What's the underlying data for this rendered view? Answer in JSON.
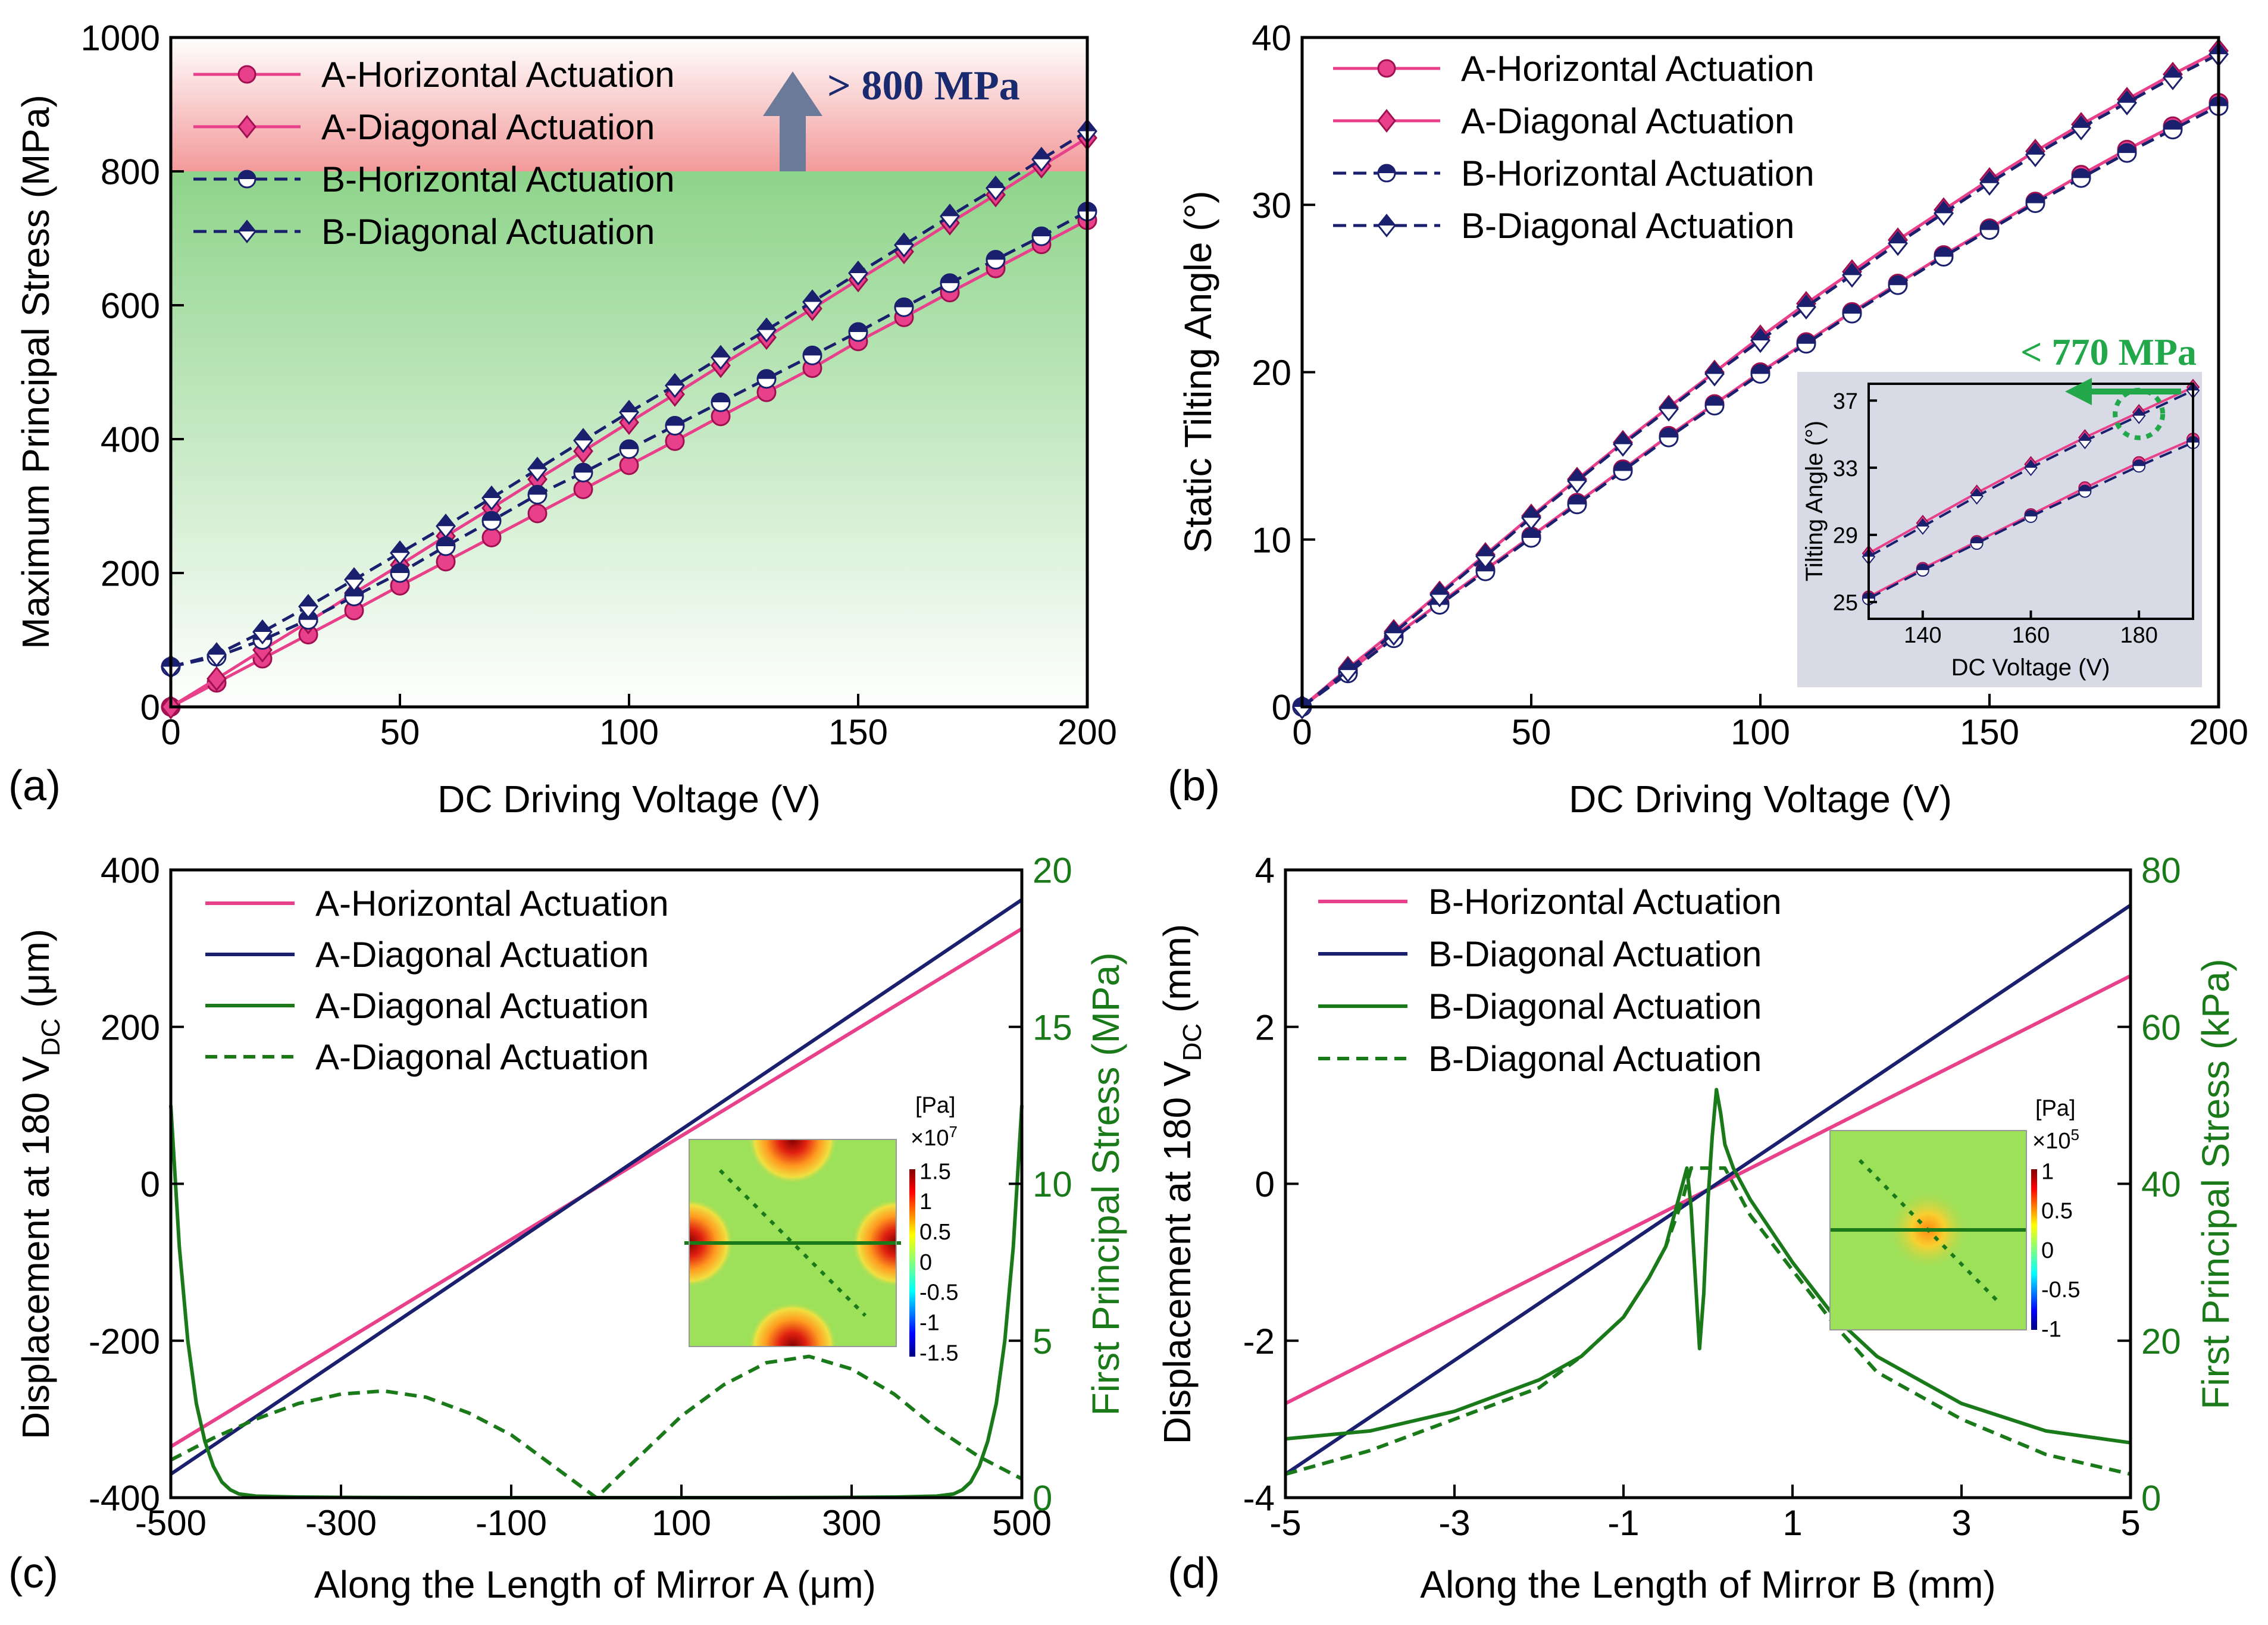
{
  "chart_data": [
    {
      "id": "a",
      "type": "line",
      "panel_label": "(a)",
      "xlabel": "DC Driving Voltage (V)",
      "ylabel": "Maximum Principal Stress (MPa)",
      "xlim": [
        0,
        200
      ],
      "ylim": [
        0,
        1000
      ],
      "xticks": [
        "0",
        "50",
        "100",
        "150",
        "200"
      ],
      "xtick_values": [
        0,
        50,
        100,
        150,
        200
      ],
      "yticks": [
        "0",
        "200",
        "400",
        "600",
        "800",
        "1000"
      ],
      "ytick_values": [
        0,
        200,
        400,
        600,
        800,
        1000
      ],
      "threshold": 800,
      "annotation": "> 800 MPa",
      "colors": {
        "pink": "#e8408a",
        "navy": "#1a1f6e",
        "red_band": "#f08080",
        "green_band": "#8fd08a",
        "arrow": "#6b7a99"
      },
      "x": [
        0,
        10,
        20,
        30,
        40,
        50,
        60,
        70,
        80,
        90,
        100,
        110,
        120,
        130,
        140,
        150,
        160,
        170,
        180,
        190,
        200
      ],
      "series": [
        {
          "name": "A-Horizontal Actuation",
          "marker": "circle",
          "values": [
            0,
            36,
            72,
            108,
            144,
            181,
            217,
            253,
            289,
            325,
            361,
            397,
            434,
            470,
            506,
            546,
            582,
            619,
            655,
            691,
            727
          ]
        },
        {
          "name": "A-Diagonal Actuation",
          "marker": "diamond",
          "values": [
            0,
            42,
            85,
            127,
            170,
            212,
            255,
            297,
            340,
            382,
            425,
            467,
            510,
            552,
            595,
            638,
            680,
            723,
            765,
            808,
            850
          ]
        },
        {
          "name": "B-Horizontal Actuation",
          "marker": "circle-half",
          "values": [
            60,
            75,
            100,
            130,
            165,
            200,
            240,
            278,
            317,
            350,
            385,
            420,
            455,
            490,
            525,
            560,
            597,
            633,
            668,
            703,
            740
          ]
        },
        {
          "name": "B-Diagonal Actuation",
          "marker": "diamond-half",
          "values": [
            60,
            78,
            112,
            150,
            190,
            230,
            270,
            312,
            355,
            398,
            440,
            480,
            522,
            563,
            605,
            648,
            690,
            733,
            775,
            818,
            860
          ]
        }
      ]
    },
    {
      "id": "b",
      "type": "line",
      "panel_label": "(b)",
      "xlabel": "DC Driving Voltage (V)",
      "ylabel": "Static Tilting Angle (°)",
      "xlim": [
        0,
        200
      ],
      "ylim": [
        0,
        40
      ],
      "xticks": [
        "0",
        "50",
        "100",
        "150",
        "200"
      ],
      "xtick_values": [
        0,
        50,
        100,
        150,
        200
      ],
      "yticks": [
        "0",
        "10",
        "20",
        "30",
        "40"
      ],
      "ytick_values": [
        0,
        10,
        20,
        30,
        40
      ],
      "x": [
        0,
        10,
        20,
        30,
        40,
        50,
        60,
        70,
        80,
        90,
        100,
        110,
        120,
        130,
        140,
        150,
        160,
        170,
        180,
        190,
        200
      ],
      "series": [
        {
          "name": "A-Horizontal Actuation",
          "marker": "circle",
          "values": [
            0,
            2.1,
            4.2,
            6.2,
            8.2,
            10.2,
            12.2,
            14.2,
            16.2,
            18.1,
            20.0,
            21.8,
            23.6,
            25.3,
            27.0,
            28.6,
            30.2,
            31.8,
            33.3,
            34.7,
            36.1
          ]
        },
        {
          "name": "A-Diagonal Actuation",
          "marker": "diamond",
          "values": [
            0,
            2.3,
            4.5,
            6.8,
            9.1,
            11.4,
            13.6,
            15.8,
            17.9,
            20.0,
            22.1,
            24.1,
            26.0,
            27.9,
            29.7,
            31.5,
            33.2,
            34.8,
            36.3,
            37.8,
            39.2
          ]
        },
        {
          "name": "B-Horizontal Actuation",
          "marker": "circle-half",
          "values": [
            0,
            2.0,
            4.1,
            6.1,
            8.1,
            10.1,
            12.1,
            14.1,
            16.1,
            18.0,
            19.9,
            21.7,
            23.5,
            25.2,
            26.9,
            28.5,
            30.1,
            31.6,
            33.1,
            34.5,
            35.9
          ]
        },
        {
          "name": "B-Diagonal Actuation",
          "marker": "diamond-half",
          "values": [
            0,
            2.2,
            4.4,
            6.7,
            9.0,
            11.3,
            13.5,
            15.7,
            17.8,
            19.9,
            21.9,
            23.9,
            25.8,
            27.7,
            29.5,
            31.3,
            33.0,
            34.6,
            36.1,
            37.6,
            39.0
          ]
        }
      ],
      "inset": {
        "xlabel": "DC Voltage (V)",
        "ylabel": "Tilting Angle (°)",
        "xlim": [
          130,
          190
        ],
        "ylim": [
          24,
          38
        ],
        "xticks": [
          "140",
          "160",
          "180"
        ],
        "xtick_values": [
          140,
          160,
          180
        ],
        "yticks": [
          "25",
          "29",
          "33",
          "37"
        ],
        "ytick_values": [
          25,
          29,
          33,
          37
        ],
        "annotation": "< 770 MPa",
        "highlight": {
          "x": 180,
          "y": 36.2
        },
        "colors": {
          "background": "#d8dbe6",
          "annotation": "#22a84a"
        }
      }
    },
    {
      "id": "c",
      "type": "line",
      "panel_label": "(c)",
      "xlabel": "Along the Length of Mirror A (μm)",
      "ylabel": "Displacement at 180 V",
      "ylabel_sub": "DC",
      "ylabel_unit": "(μm)",
      "ylabel_right": "First Principal Stress (MPa)",
      "xlim": [
        -500,
        500
      ],
      "ylim": [
        -400,
        400
      ],
      "ylim_right": [
        0,
        20
      ],
      "xticks": [
        "-500",
        "-300",
        "-100",
        "100",
        "300",
        "500"
      ],
      "xtick_values": [
        -500,
        -300,
        -100,
        100,
        300,
        500
      ],
      "yticks": [
        "-400",
        "-200",
        "0",
        "200",
        "400"
      ],
      "ytick_values": [
        -400,
        -200,
        0,
        200,
        400
      ],
      "yticks_right": [
        "0",
        "5",
        "10",
        "15",
        "20"
      ],
      "ytick_values_right": [
        0,
        5,
        10,
        15,
        20
      ],
      "series": [
        {
          "name": "A-Horizontal Actuation",
          "axis": "left",
          "style": "solid",
          "color": "#e8408a",
          "x": [
            -500,
            500
          ],
          "values": [
            -335,
            325
          ]
        },
        {
          "name": "A-Diagonal Actuation",
          "axis": "left",
          "style": "solid",
          "color": "#1a1f6e",
          "x": [
            -500,
            500
          ],
          "values": [
            -370,
            362
          ]
        },
        {
          "name": "A-Diagonal Actuation",
          "axis": "right",
          "style": "solid",
          "color": "#1a7a1a",
          "x": [
            -500,
            -490,
            -480,
            -470,
            -460,
            -450,
            -440,
            -430,
            -420,
            -400,
            -350,
            -300,
            -200,
            0,
            200,
            300,
            350,
            400,
            420,
            430,
            440,
            450,
            460,
            470,
            480,
            490,
            500
          ],
          "values": [
            12.5,
            8.0,
            5.0,
            3.0,
            1.8,
            1.0,
            0.5,
            0.25,
            0.12,
            0.05,
            0.02,
            0.01,
            0.0,
            0.0,
            0.0,
            0.01,
            0.02,
            0.05,
            0.12,
            0.25,
            0.5,
            1.0,
            1.8,
            3.0,
            5.0,
            8.0,
            12.5
          ]
        },
        {
          "name": "A-Diagonal Actuation",
          "axis": "right",
          "style": "dashed",
          "color": "#1a7a1a",
          "x": [
            -500,
            -450,
            -400,
            -350,
            -300,
            -250,
            -200,
            -150,
            -100,
            -50,
            0,
            50,
            100,
            150,
            200,
            250,
            300,
            350,
            400,
            450,
            500
          ],
          "values": [
            1.2,
            1.9,
            2.5,
            3.0,
            3.3,
            3.4,
            3.2,
            2.7,
            2.0,
            1.0,
            0.0,
            1.3,
            2.6,
            3.6,
            4.3,
            4.5,
            4.1,
            3.3,
            2.2,
            1.3,
            0.6
          ]
        }
      ],
      "inset": {
        "unit": "[Pa]",
        "scale": "×10",
        "exponent": "7",
        "colorbar_ticks": [
          "1.5",
          "1",
          "0.5",
          "0",
          "-0.5",
          "-1",
          "-1.5"
        ],
        "colorbar_values": [
          1.5,
          1,
          0.5,
          0,
          -0.5,
          -1,
          -1.5
        ]
      }
    },
    {
      "id": "d",
      "type": "line",
      "panel_label": "(d)",
      "xlabel": "Along the Length of Mirror B (mm)",
      "ylabel": "Displacement at 180 V",
      "ylabel_sub": "DC",
      "ylabel_unit": "(mm)",
      "ylabel_right": "First Principal Stress (kPa)",
      "xlim": [
        -5,
        5
      ],
      "ylim": [
        -4,
        4
      ],
      "ylim_right": [
        0,
        80
      ],
      "xticks": [
        "-5",
        "-3",
        "-1",
        "1",
        "3",
        "5"
      ],
      "xtick_values": [
        -5,
        -3,
        -1,
        1,
        3,
        5
      ],
      "yticks": [
        "-4",
        "-2",
        "0",
        "2",
        "4"
      ],
      "ytick_values": [
        -4,
        -2,
        0,
        2,
        4
      ],
      "yticks_right": [
        "0",
        "20",
        "40",
        "60",
        "80"
      ],
      "ytick_values_right": [
        0,
        20,
        40,
        60,
        80
      ],
      "series": [
        {
          "name": "B-Horizontal Actuation",
          "axis": "left",
          "style": "solid",
          "color": "#e8408a",
          "x": [
            -5,
            5
          ],
          "values": [
            -2.8,
            2.65
          ]
        },
        {
          "name": "B-Diagonal Actuation",
          "axis": "left",
          "style": "solid",
          "color": "#1a1f6e",
          "x": [
            -5,
            5
          ],
          "values": [
            -3.7,
            3.55
          ]
        },
        {
          "name": "B-Diagonal Actuation",
          "axis": "right",
          "style": "solid",
          "color": "#1a7a1a",
          "x": [
            -5,
            -4,
            -3,
            -2,
            -1.5,
            -1,
            -0.7,
            -0.5,
            -0.4,
            -0.3,
            -0.25,
            -0.2,
            -0.15,
            -0.1,
            -0.05,
            0,
            0.05,
            0.1,
            0.15,
            0.2,
            0.3,
            0.5,
            1,
            1.5,
            2,
            3,
            4,
            5
          ],
          "values": [
            7.5,
            8.5,
            11,
            15,
            18,
            23,
            28,
            32,
            36,
            40,
            42,
            37,
            28,
            19,
            26,
            38,
            46,
            52,
            49,
            45,
            42,
            38,
            30,
            23,
            18,
            12,
            8.5,
            7
          ]
        },
        {
          "name": "B-Diagonal Actuation",
          "axis": "right",
          "style": "dashed",
          "color": "#1a7a1a",
          "x": [
            -5,
            -4,
            -3,
            -2,
            -1.5,
            -1,
            -0.7,
            -0.5,
            -0.3,
            -0.2,
            0,
            0.2,
            0.3,
            0.5,
            1,
            1.5,
            2,
            3,
            4,
            5
          ],
          "values": [
            3,
            6,
            10,
            14,
            18,
            23,
            28,
            32,
            38,
            42,
            42,
            42,
            40,
            36,
            29,
            22,
            16,
            10,
            5.5,
            3
          ]
        }
      ],
      "inset": {
        "unit": "[Pa]",
        "scale": "×10",
        "exponent": "5",
        "colorbar_ticks": [
          "1",
          "0.5",
          "0",
          "-0.5",
          "-1"
        ],
        "colorbar_values": [
          1,
          0.5,
          0,
          -0.5,
          -1
        ]
      }
    }
  ]
}
